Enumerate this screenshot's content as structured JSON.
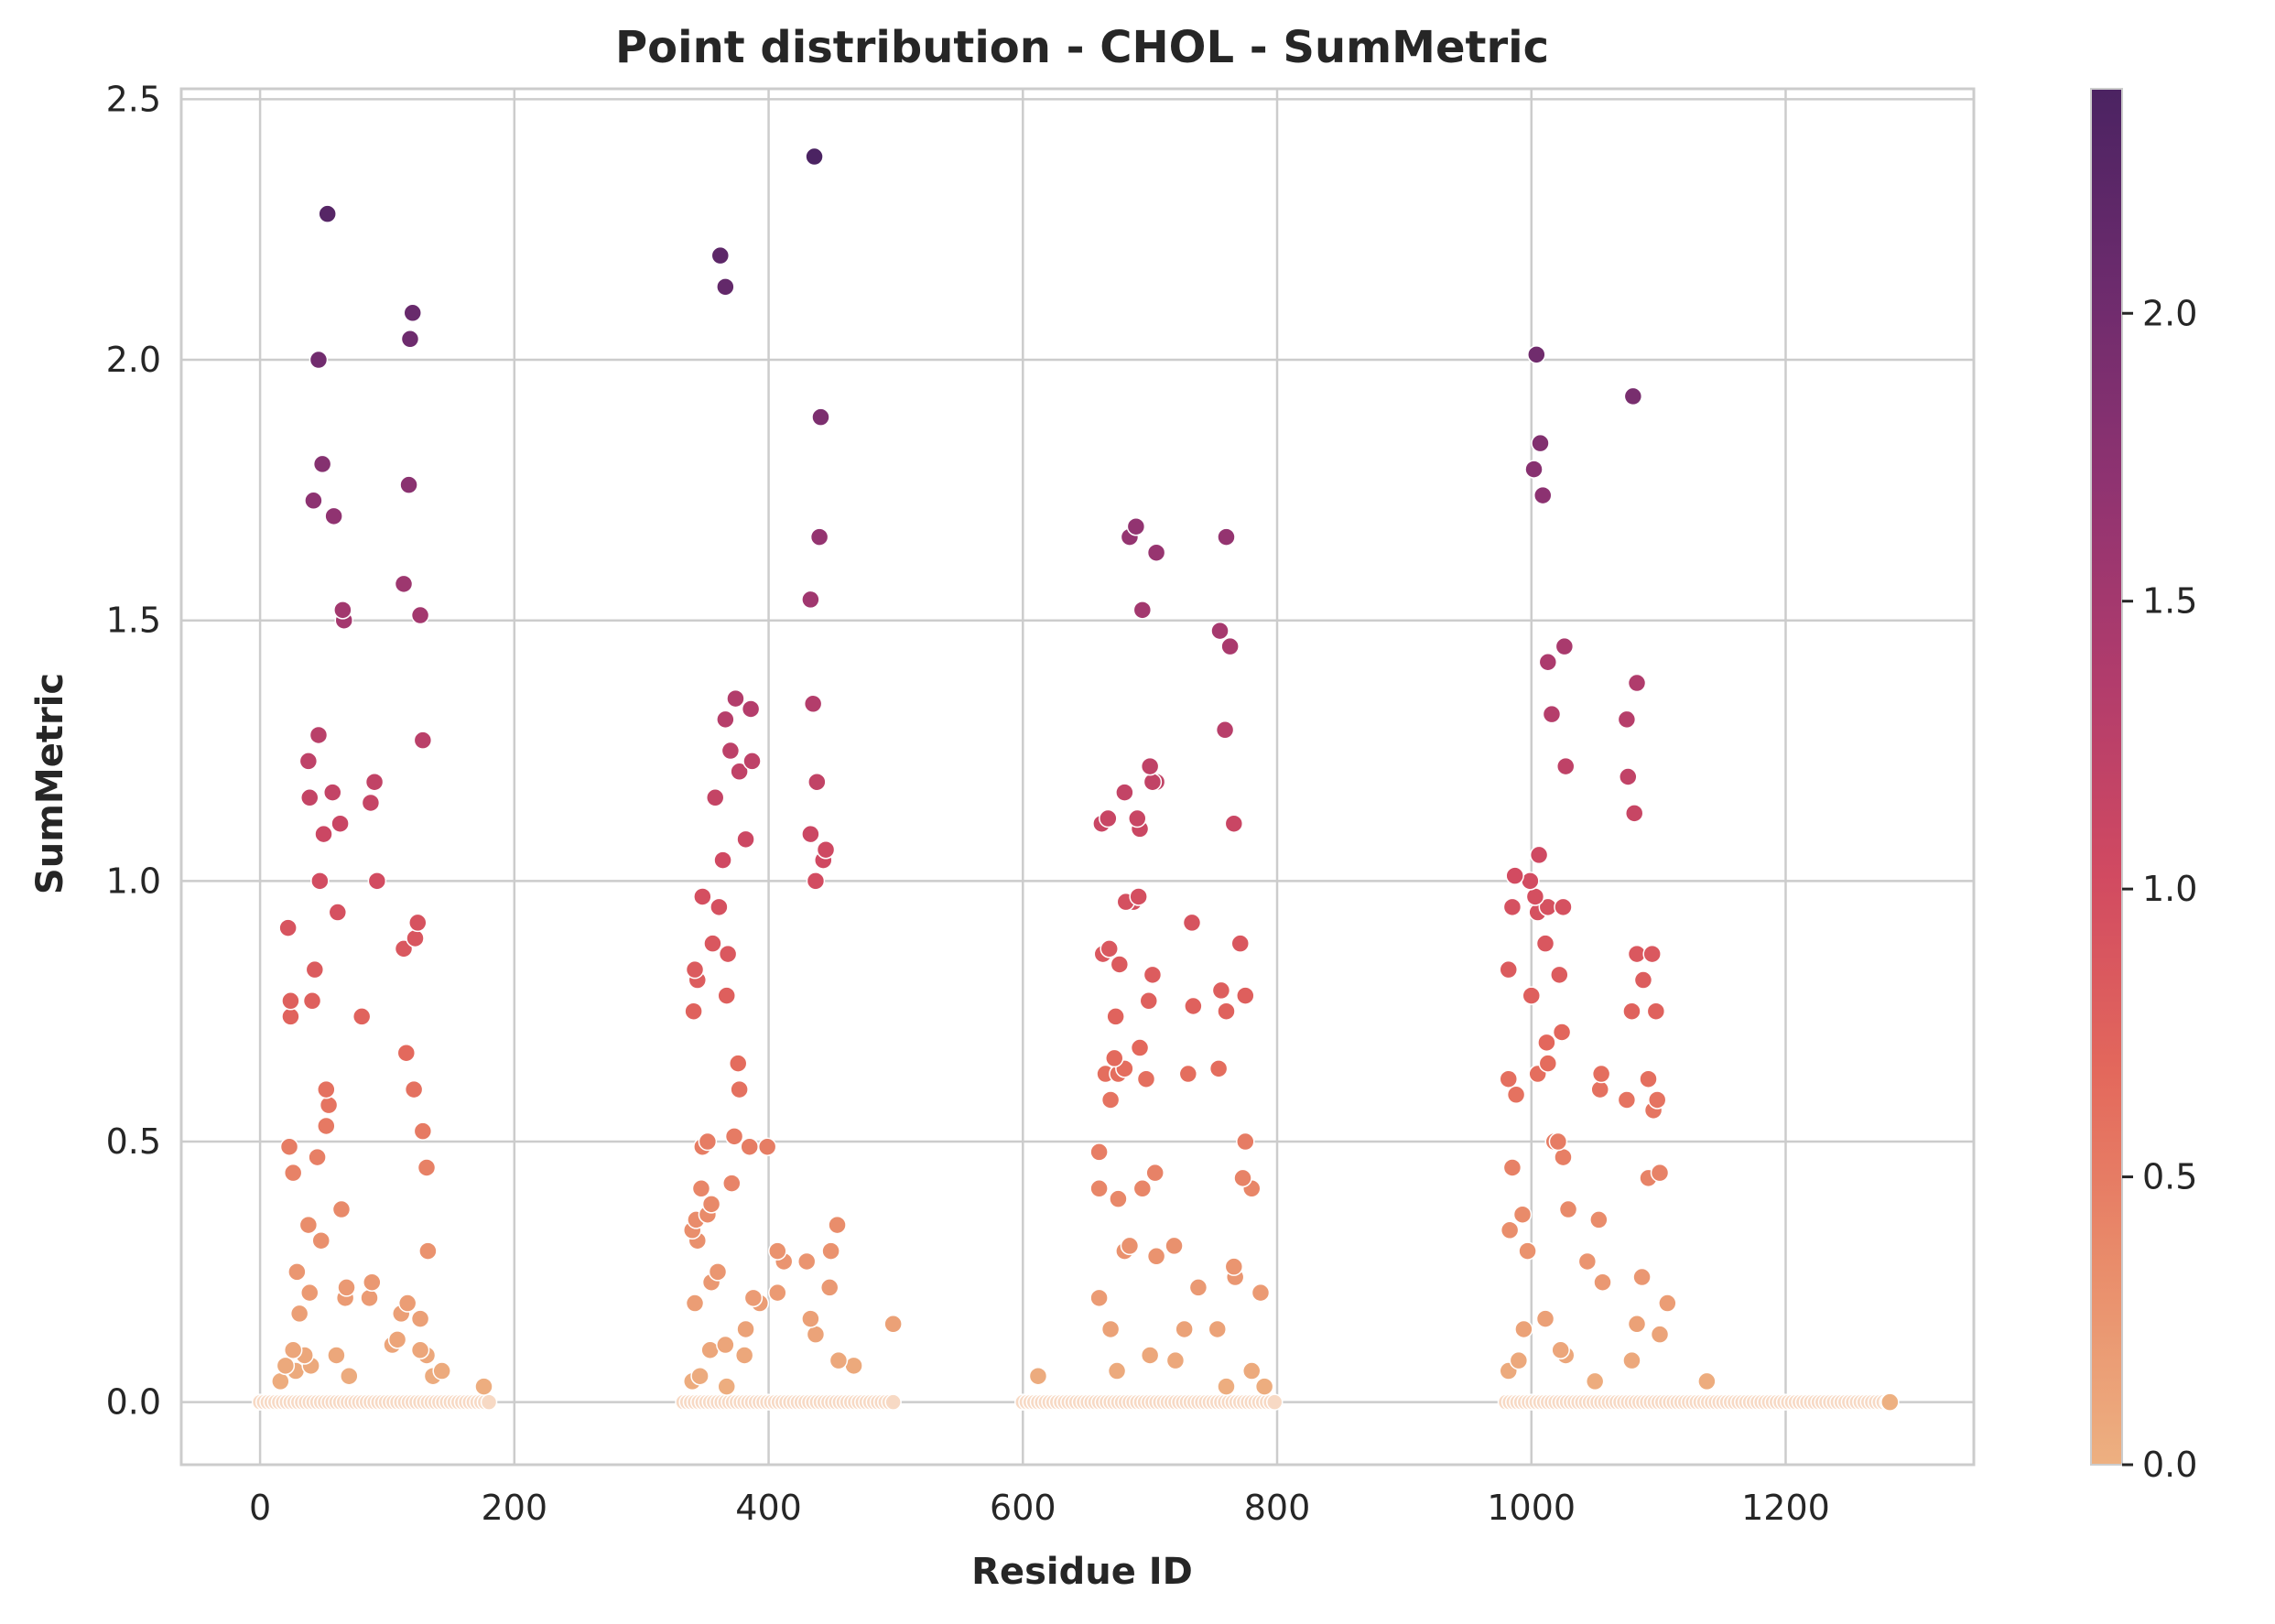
{
  "chart_data": {
    "type": "scatter",
    "title": "Point distribution - CHOL - SumMetric",
    "xlabel": "Residue ID",
    "ylabel": "SumMetric",
    "xlim": [
      -62,
      1348
    ],
    "ylim": [
      -0.12,
      2.52
    ],
    "xticks": [
      0,
      200,
      400,
      600,
      800,
      1000,
      1200
    ],
    "xtick_labels": [
      "0",
      "200",
      "400",
      "600",
      "800",
      "1000",
      "1200"
    ],
    "yticks": [
      0.0,
      0.5,
      1.0,
      1.5,
      2.0,
      2.5
    ],
    "ytick_labels": [
      "0.0",
      "0.5",
      "1.0",
      "1.5",
      "2.0",
      "2.5"
    ],
    "grid": true,
    "colorbar": {
      "colormap": "flare",
      "range": [
        0.0,
        2.39
      ],
      "ticks": [
        0.0,
        0.5,
        1.0,
        1.5,
        2.0
      ],
      "tick_labels": [
        "0.0",
        "0.5",
        "1.0",
        "1.5",
        "2.0"
      ],
      "colors": [
        "#edb081",
        "#e98d6b",
        "#e3685c",
        "#d14a61",
        "#b13c6c",
        "#8f3371",
        "#6c2b6d",
        "#4b2362"
      ]
    },
    "points": [
      [
        53,
        2.28
      ],
      [
        46,
        2.0
      ],
      [
        49,
        1.8
      ],
      [
        42,
        1.73
      ],
      [
        58,
        1.7
      ],
      [
        65,
        1.52
      ],
      [
        66,
        1.5
      ],
      [
        46,
        1.28
      ],
      [
        38,
        1.23
      ],
      [
        39,
        1.16
      ],
      [
        57,
        1.17
      ],
      [
        63,
        1.11
      ],
      [
        50,
        1.09
      ],
      [
        47,
        1.0
      ],
      [
        61,
        0.94
      ],
      [
        22,
        0.91
      ],
      [
        43,
        0.83
      ],
      [
        24,
        0.77
      ],
      [
        41,
        0.77
      ],
      [
        24,
        0.74
      ],
      [
        80,
        0.74
      ],
      [
        52,
        0.6
      ],
      [
        54,
        0.57
      ],
      [
        52,
        0.53
      ],
      [
        23,
        0.49
      ],
      [
        45,
        0.47
      ],
      [
        26,
        0.44
      ],
      [
        64,
        0.37
      ],
      [
        38,
        0.34
      ],
      [
        48,
        0.31
      ],
      [
        29,
        0.25
      ],
      [
        68,
        0.22
      ],
      [
        39,
        0.21
      ],
      [
        67,
        0.2
      ],
      [
        31,
        0.17
      ],
      [
        26,
        0.1
      ],
      [
        35,
        0.09
      ],
      [
        20,
        0.07
      ],
      [
        40,
        0.07
      ],
      [
        28,
        0.06
      ],
      [
        70,
        0.05
      ],
      [
        16,
        0.04
      ],
      [
        60,
        0.09
      ],
      [
        90,
        1.19
      ],
      [
        87,
        1.15
      ],
      [
        92,
        1.0
      ],
      [
        88,
        0.23
      ],
      [
        86,
        0.2
      ],
      [
        120,
        2.09
      ],
      [
        118,
        2.04
      ],
      [
        117,
        1.76
      ],
      [
        113,
        1.57
      ],
      [
        126,
        1.51
      ],
      [
        128,
        1.27
      ],
      [
        124,
        0.92
      ],
      [
        122,
        0.89
      ],
      [
        113,
        0.87
      ],
      [
        115,
        0.67
      ],
      [
        121,
        0.6
      ],
      [
        128,
        0.52
      ],
      [
        131,
        0.45
      ],
      [
        132,
        0.29
      ],
      [
        116,
        0.19
      ],
      [
        111,
        0.17
      ],
      [
        126,
        0.16
      ],
      [
        108,
        0.12
      ],
      [
        104,
        0.11
      ],
      [
        126,
        0.1
      ],
      [
        131,
        0.09
      ],
      [
        143,
        0.06
      ],
      [
        136,
        0.05
      ],
      [
        176,
        0.03
      ],
      [
        436,
        2.39
      ],
      [
        362,
        2.2
      ],
      [
        366,
        2.14
      ],
      [
        441,
        1.89
      ],
      [
        440,
        1.66
      ],
      [
        433,
        1.54
      ],
      [
        435,
        1.34
      ],
      [
        374,
        1.35
      ],
      [
        386,
        1.33
      ],
      [
        366,
        1.31
      ],
      [
        370,
        1.25
      ],
      [
        387,
        1.23
      ],
      [
        377,
        1.21
      ],
      [
        438,
        1.19
      ],
      [
        358,
        1.16
      ],
      [
        382,
        1.08
      ],
      [
        433,
        1.09
      ],
      [
        445,
        1.06
      ],
      [
        443,
        1.04
      ],
      [
        437,
        1.0
      ],
      [
        364,
        1.04
      ],
      [
        348,
        0.97
      ],
      [
        361,
        0.95
      ],
      [
        356,
        0.88
      ],
      [
        368,
        0.86
      ],
      [
        342,
        0.83
      ],
      [
        344,
        0.81
      ],
      [
        367,
        0.78
      ],
      [
        341,
        0.75
      ],
      [
        376,
        0.65
      ],
      [
        377,
        0.6
      ],
      [
        373,
        0.51
      ],
      [
        352,
        0.5
      ],
      [
        348,
        0.49
      ],
      [
        385,
        0.49
      ],
      [
        399,
        0.49
      ],
      [
        371,
        0.42
      ],
      [
        347,
        0.41
      ],
      [
        355,
        0.38
      ],
      [
        352,
        0.36
      ],
      [
        343,
        0.35
      ],
      [
        340,
        0.33
      ],
      [
        344,
        0.31
      ],
      [
        407,
        0.29
      ],
      [
        412,
        0.27
      ],
      [
        430,
        0.27
      ],
      [
        449,
        0.29
      ],
      [
        454,
        0.34
      ],
      [
        360,
        0.25
      ],
      [
        388,
        0.2
      ],
      [
        393,
        0.19
      ],
      [
        355,
        0.23
      ],
      [
        366,
        0.11
      ],
      [
        407,
        0.21
      ],
      [
        448,
        0.22
      ],
      [
        382,
        0.14
      ],
      [
        433,
        0.16
      ],
      [
        437,
        0.13
      ],
      [
        342,
        0.19
      ],
      [
        354,
        0.1
      ],
      [
        381,
        0.09
      ],
      [
        455,
        0.08
      ],
      [
        467,
        0.07
      ],
      [
        498,
        0.15
      ],
      [
        367,
        0.03
      ],
      [
        346,
        0.05
      ],
      [
        340,
        0.04
      ],
      [
        689,
        1.68
      ],
      [
        684,
        1.66
      ],
      [
        760,
        1.66
      ],
      [
        705,
        1.63
      ],
      [
        694,
        1.52
      ],
      [
        755,
        1.48
      ],
      [
        763,
        1.45
      ],
      [
        759,
        1.29
      ],
      [
        700,
        1.22
      ],
      [
        705,
        1.19
      ],
      [
        702,
        1.19
      ],
      [
        680,
        1.17
      ],
      [
        662,
        1.11
      ],
      [
        667,
        1.12
      ],
      [
        690,
        1.12
      ],
      [
        692,
        1.1
      ],
      [
        766,
        1.11
      ],
      [
        691,
        0.97
      ],
      [
        687,
        0.96
      ],
      [
        681,
        0.96
      ],
      [
        733,
        0.92
      ],
      [
        771,
        0.88
      ],
      [
        668,
        0.87
      ],
      [
        663,
        0.86
      ],
      [
        676,
        0.84
      ],
      [
        702,
        0.82
      ],
      [
        756,
        0.79
      ],
      [
        775,
        0.78
      ],
      [
        699,
        0.77
      ],
      [
        734,
        0.76
      ],
      [
        760,
        0.75
      ],
      [
        673,
        0.74
      ],
      [
        692,
        0.68
      ],
      [
        672,
        0.66
      ],
      [
        680,
        0.64
      ],
      [
        665,
        0.63
      ],
      [
        730,
        0.63
      ],
      [
        754,
        0.64
      ],
      [
        675,
        0.63
      ],
      [
        697,
        0.62
      ],
      [
        669,
        0.58
      ],
      [
        775,
        0.5
      ],
      [
        660,
        0.48
      ],
      [
        704,
        0.44
      ],
      [
        773,
        0.43
      ],
      [
        694,
        0.41
      ],
      [
        660,
        0.41
      ],
      [
        780,
        0.41
      ],
      [
        675,
        0.39
      ],
      [
        684,
        0.3
      ],
      [
        680,
        0.29
      ],
      [
        719,
        0.3
      ],
      [
        705,
        0.28
      ],
      [
        766,
        0.26
      ],
      [
        767,
        0.24
      ],
      [
        738,
        0.22
      ],
      [
        660,
        0.2
      ],
      [
        787,
        0.21
      ],
      [
        727,
        0.14
      ],
      [
        753,
        0.14
      ],
      [
        669,
        0.14
      ],
      [
        700,
        0.09
      ],
      [
        720,
        0.08
      ],
      [
        674,
        0.06
      ],
      [
        612,
        0.05
      ],
      [
        780,
        0.06
      ],
      [
        760,
        0.03
      ],
      [
        790,
        0.03
      ],
      [
        1004,
        2.01
      ],
      [
        1080,
        1.93
      ],
      [
        1007,
        1.84
      ],
      [
        1002,
        1.79
      ],
      [
        1009,
        1.74
      ],
      [
        1026,
        1.45
      ],
      [
        1013,
        1.42
      ],
      [
        1083,
        1.38
      ],
      [
        1016,
        1.32
      ],
      [
        1075,
        1.31
      ],
      [
        1027,
        1.22
      ],
      [
        1076,
        1.2
      ],
      [
        1081,
        1.13
      ],
      [
        1006,
        1.05
      ],
      [
        987,
        1.01
      ],
      [
        999,
        1.0
      ],
      [
        1003,
        0.97
      ],
      [
        1013,
        0.95
      ],
      [
        1025,
        0.95
      ],
      [
        985,
        0.95
      ],
      [
        1005,
        0.94
      ],
      [
        1083,
        0.86
      ],
      [
        1095,
        0.86
      ],
      [
        1011,
        0.88
      ],
      [
        982,
        0.83
      ],
      [
        1022,
        0.82
      ],
      [
        1088,
        0.81
      ],
      [
        1000,
        0.78
      ],
      [
        1098,
        0.75
      ],
      [
        1079,
        0.75
      ],
      [
        1024,
        0.71
      ],
      [
        1012,
        0.69
      ],
      [
        1013,
        0.65
      ],
      [
        1005,
        0.63
      ],
      [
        1055,
        0.63
      ],
      [
        1092,
        0.62
      ],
      [
        982,
        0.62
      ],
      [
        1054,
        0.6
      ],
      [
        1099,
        0.58
      ],
      [
        1075,
        0.58
      ],
      [
        1096,
        0.56
      ],
      [
        988,
        0.59
      ],
      [
        1018,
        0.5
      ],
      [
        1021,
        0.5
      ],
      [
        1025,
        0.47
      ],
      [
        985,
        0.45
      ],
      [
        1101,
        0.44
      ],
      [
        1092,
        0.43
      ],
      [
        993,
        0.36
      ],
      [
        1029,
        0.37
      ],
      [
        1053,
        0.35
      ],
      [
        983,
        0.33
      ],
      [
        997,
        0.29
      ],
      [
        1044,
        0.27
      ],
      [
        1056,
        0.23
      ],
      [
        1087,
        0.24
      ],
      [
        1107,
        0.19
      ],
      [
        1011,
        0.16
      ],
      [
        1083,
        0.15
      ],
      [
        1101,
        0.13
      ],
      [
        994,
        0.14
      ],
      [
        1023,
        0.1
      ],
      [
        1027,
        0.09
      ],
      [
        1079,
        0.08
      ],
      [
        990,
        0.08
      ],
      [
        982,
        0.06
      ],
      [
        1138,
        0.04
      ],
      [
        1050,
        0.04
      ]
    ],
    "baseline_points_y": 0.0,
    "baseline_ranges": [
      [
        0,
        180
      ],
      [
        333,
        500
      ],
      [
        600,
        800
      ],
      [
        980,
        1282
      ]
    ]
  }
}
